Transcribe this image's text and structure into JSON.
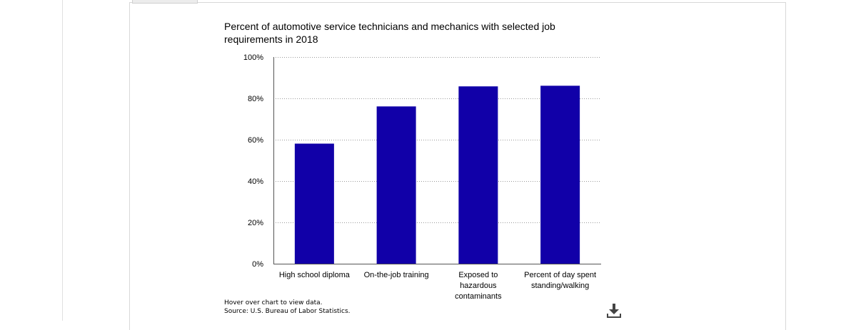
{
  "chart_data": {
    "type": "bar",
    "title": "Percent of automotive service technicians and mechanics with selected job requirements in 2018",
    "categories": [
      [
        "High school diploma"
      ],
      [
        "On-the-job training"
      ],
      [
        "Exposed to",
        "hazardous",
        "contaminants"
      ],
      [
        "Percent of day spent",
        "standing/walking"
      ]
    ],
    "values": [
      58.1,
      76.1,
      85.8,
      86.1
    ],
    "yticks": [
      "0%",
      "20%",
      "40%",
      "60%",
      "80%",
      "100%"
    ],
    "ylim": [
      0,
      100
    ],
    "bar_color": "#1100a8",
    "grid": "dotted horizontal"
  },
  "notes": {
    "hover": "Hover over chart to view data.",
    "source": "Source: U.S. Bureau of Labor Statistics."
  },
  "icons": {
    "download": "download-icon"
  }
}
